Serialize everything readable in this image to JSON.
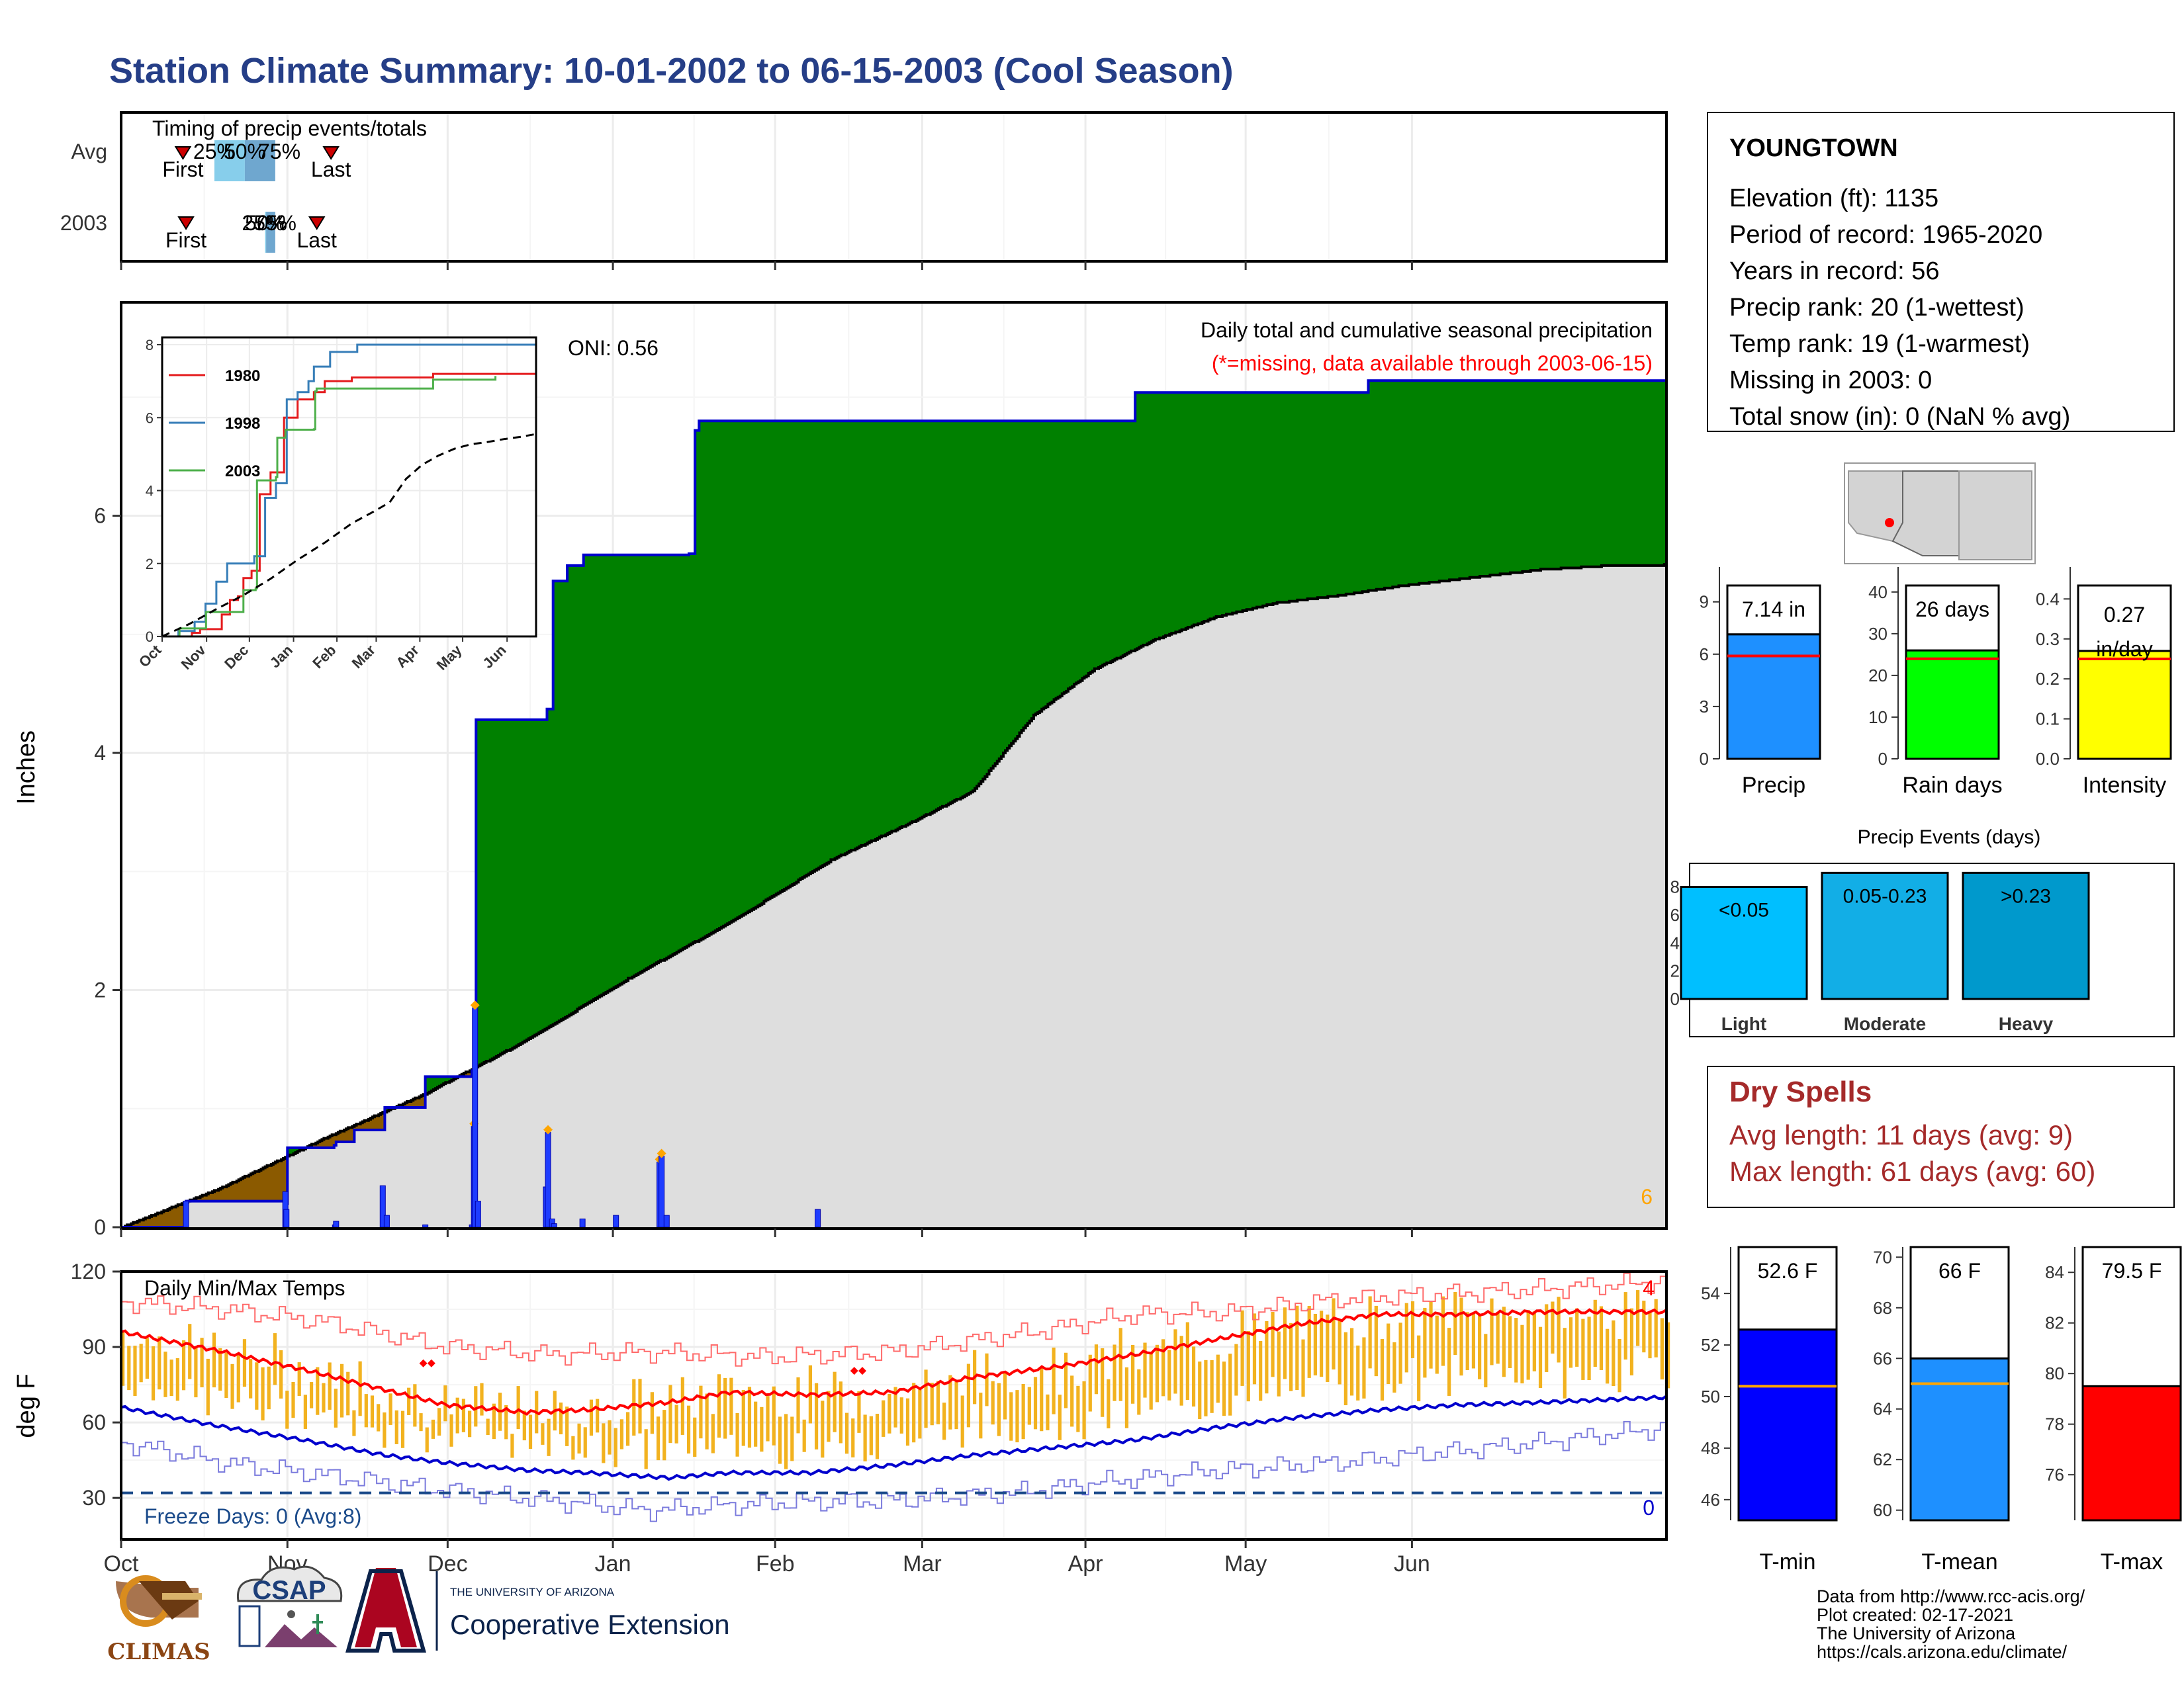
{
  "title": "Station Climate Summary: 10-01-2002 to 06-15-2003 (Cool Season)",
  "colors": {
    "title": "#253e87",
    "dry_spells": "#a52a2a",
    "missing_note": "#ff0000",
    "surplus": "#008000",
    "deficit": "#8b5a00",
    "normal_fill": "#dedede",
    "current_line": "#0000cd",
    "temp_bar": "#f2b21f",
    "tmax_line": "#ff0000",
    "tmin_line": "#0000cd",
    "freeze_line": "#1a4a8a"
  },
  "month_labels": [
    "Oct",
    "Nov",
    "Dec",
    "Jan",
    "Feb",
    "Mar",
    "Apr",
    "May",
    "Jun"
  ],
  "timing": {
    "title": "Timing of precip events/totals",
    "rows": [
      {
        "label": "Avg",
        "first_label": "First",
        "last_label": "Last",
        "first_day": 61,
        "last_day": 207,
        "p25_label": "25%",
        "p50_label": "50%",
        "p75_label": "75%",
        "p25_day": 92,
        "p50_day": 122,
        "p75_day": 152
      },
      {
        "label": "2003",
        "first_label": "First",
        "last_label": "Last",
        "first_day": 64,
        "last_day": 193,
        "p25_label": "25%",
        "p50_label": "50%",
        "p75_label": "75%",
        "p25_day": 142,
        "p50_day": 143,
        "p75_day": 152
      }
    ]
  },
  "station": {
    "name": "YOUNGTOWN",
    "lines": [
      "Elevation (ft): 1135",
      "Period of record: 1965-2020",
      "Years in record: 56",
      "Precip rank: 20 (1-wettest)",
      "Temp rank: 19 (1-warmest)",
      "Missing in 2003: 0",
      "Total snow (in): 0 (NaN % avg)"
    ]
  },
  "precip_panel": {
    "ylabel": "Inches",
    "oni": "ONI: 0.56",
    "subtitle": "Daily total and cumulative seasonal precipitation",
    "missing_note": "(*=missing, data available through 2003-06-15)",
    "corner_count": "6",
    "ylim": [
      0,
      7.8
    ],
    "yticks": [
      "0",
      "2",
      "4",
      "6"
    ]
  },
  "inset": {
    "yticks": [
      "0",
      "2",
      "4",
      "6",
      "8"
    ],
    "xticks": [
      "Oct",
      "Nov",
      "Dec",
      "Jan",
      "Feb",
      "Mar",
      "Apr",
      "May",
      "Jun"
    ],
    "legend": [
      {
        "name": "1980",
        "color": "#e41a1c"
      },
      {
        "name": "1998",
        "color": "#377eb8"
      },
      {
        "name": "2003",
        "color": "#4daf4a"
      }
    ]
  },
  "stat_bars": [
    {
      "label": "Precip",
      "value_label": "7.14 in",
      "value": 7.14,
      "avg": 5.9,
      "ymax": 11,
      "ticks": [
        "0",
        "3",
        "6",
        "9"
      ],
      "color": "#1e90ff"
    },
    {
      "label": "Rain days",
      "value_label": "26 days",
      "value": 26,
      "avg": 24,
      "ymax": 46,
      "ticks": [
        "0",
        "10",
        "20",
        "30",
        "40"
      ],
      "color": "#00ff00"
    },
    {
      "label": "Intensity",
      "value_label": "0.27 in/day",
      "value": 0.27,
      "avg": 0.25,
      "ymax": 0.48,
      "ticks": [
        "0.0",
        "0.1",
        "0.2",
        "0.3",
        "0.4"
      ],
      "color": "#ffff00"
    }
  ],
  "precip_events": {
    "title": "Precip Events (days)",
    "yticks": [
      "0",
      "2",
      "4",
      "6",
      "8"
    ],
    "bars": [
      {
        "label": "Light",
        "range": "<0.05",
        "value": 8
      },
      {
        "label": "Moderate",
        "range": "0.05-0.23",
        "value": 9
      },
      {
        "label": "Heavy",
        "range": ">0.23",
        "value": 9
      }
    ]
  },
  "dry_spells": {
    "title": "Dry Spells",
    "avg_line": "Avg length: 11 days (avg: 9)",
    "max_line": "Max length: 61 days (avg: 60)"
  },
  "temp_panel": {
    "title": "Daily Min/Max Temps",
    "ylabel": "deg F",
    "yticks": [
      "30",
      "60",
      "90",
      "120"
    ],
    "ylim": [
      14,
      120
    ],
    "freeze_label": "Freeze Days: 0 (Avg:8)",
    "count_top": "4",
    "count_bottom": "0"
  },
  "temp_bars": [
    {
      "label": "T-min",
      "value_label": "52.6 F",
      "value": 52.6,
      "avg": 50.4,
      "ymin": 45.2,
      "ymax": 55.8,
      "ticks": [
        "46",
        "48",
        "50",
        "52",
        "54"
      ],
      "color": "#0000ff"
    },
    {
      "label": "T-mean",
      "value_label": "66 F",
      "value": 66,
      "avg": 65,
      "ymin": 59.6,
      "ymax": 70.4,
      "ticks": [
        "60",
        "62",
        "64",
        "66",
        "68",
        "70"
      ],
      "color": "#1e90ff"
    },
    {
      "label": "T-max",
      "value_label": "79.5 F",
      "value": 79.5,
      "avg": 79.6,
      "ymin": 74.2,
      "ymax": 85,
      "ticks": [
        "76",
        "78",
        "80",
        "82",
        "84"
      ],
      "color": "#ff0000"
    }
  ],
  "logos": {
    "climas": "CLIMAS",
    "csap": "CSAP",
    "ua_small": "THE UNIVERSITY OF ARIZONA",
    "ua_big": "Cooperative Extension"
  },
  "footer": [
    "Data from http://www.rcc-acis.org/",
    "Plot created: 02-17-2021",
    "The University of Arizona",
    "https://cals.arizona.edu/climate/"
  ],
  "chart_data": [
    {
      "type": "area",
      "title": "Daily total and cumulative seasonal precipitation",
      "ylabel": "Inches",
      "ylim": [
        0,
        7.8
      ],
      "cumulative_2003_steps": [
        [
          0,
          0
        ],
        [
          64,
          0.22
        ],
        [
          162,
          0.2
        ],
        [
          163,
          0.67
        ],
        [
          210,
          0.69
        ],
        [
          211,
          0.72
        ],
        [
          230,
          0.82
        ],
        [
          260,
          1.01
        ],
        [
          300,
          1.27
        ],
        [
          345,
          1.32
        ],
        [
          350,
          4.28
        ],
        [
          420,
          4.37
        ],
        [
          425,
          5.45
        ],
        [
          440,
          5.58
        ],
        [
          455,
          5.67
        ],
        [
          560,
          5.68
        ],
        [
          565,
          6.72
        ],
        [
          570,
          6.8
        ],
        [
          1000,
          7.04
        ],
        [
          1230,
          7.14
        ]
      ],
      "cumulative_normal_points": [
        [
          0,
          0
        ],
        [
          100,
          0.34
        ],
        [
          200,
          0.75
        ],
        [
          300,
          1.13
        ],
        [
          400,
          1.58
        ],
        [
          500,
          2.1
        ],
        [
          600,
          2.57
        ],
        [
          700,
          3.1
        ],
        [
          780,
          3.42
        ],
        [
          840,
          3.68
        ],
        [
          900,
          4.32
        ],
        [
          960,
          4.71
        ],
        [
          1020,
          4.96
        ],
        [
          1080,
          5.15
        ],
        [
          1140,
          5.27
        ],
        [
          1200,
          5.33
        ],
        [
          1260,
          5.41
        ],
        [
          1320,
          5.47
        ],
        [
          1400,
          5.55
        ],
        [
          1460,
          5.58
        ],
        [
          1522,
          5.59
        ]
      ],
      "daily_events": [
        [
          64,
          0.22
        ],
        [
          162,
          0.3
        ],
        [
          163,
          0.15
        ],
        [
          211,
          0.02
        ],
        [
          212,
          0.05
        ],
        [
          258,
          0.35
        ],
        [
          262,
          0.1
        ],
        [
          300,
          0.02
        ],
        [
          346,
          0.02
        ],
        [
          348,
          0.85
        ],
        [
          349,
          1.85
        ],
        [
          352,
          0.22
        ],
        [
          419,
          0.34
        ],
        [
          421,
          0.8
        ],
        [
          425,
          0.07
        ],
        [
          427,
          0.03
        ],
        [
          455,
          0.07
        ],
        [
          488,
          0.1
        ],
        [
          531,
          0.55
        ],
        [
          533,
          0.6
        ],
        [
          538,
          0.1
        ],
        [
          687,
          0.15
        ]
      ]
    },
    {
      "type": "line",
      "title": "Daily Min/Max Temps",
      "ylabel": "deg F",
      "ylim": [
        14,
        120
      ],
      "normal_max_points": [
        [
          0,
          96
        ],
        [
          90,
          89
        ],
        [
          180,
          81
        ],
        [
          260,
          73
        ],
        [
          320,
          67
        ],
        [
          400,
          64
        ],
        [
          460,
          65
        ],
        [
          540,
          68
        ],
        [
          600,
          72
        ],
        [
          680,
          71
        ],
        [
          760,
          72
        ],
        [
          840,
          78
        ],
        [
          920,
          82
        ],
        [
          1000,
          87
        ],
        [
          1080,
          93
        ],
        [
          1160,
          99
        ],
        [
          1240,
          103
        ],
        [
          1320,
          103
        ],
        [
          1400,
          104
        ],
        [
          1524,
          104
        ]
      ],
      "normal_min_points": [
        [
          0,
          66
        ],
        [
          90,
          59
        ],
        [
          180,
          53
        ],
        [
          260,
          47
        ],
        [
          320,
          44
        ],
        [
          400,
          41
        ],
        [
          460,
          40
        ],
        [
          540,
          38
        ],
        [
          600,
          40
        ],
        [
          680,
          40
        ],
        [
          760,
          43
        ],
        [
          840,
          47
        ],
        [
          920,
          50
        ],
        [
          1000,
          53
        ],
        [
          1080,
          58
        ],
        [
          1160,
          62
        ],
        [
          1240,
          65
        ],
        [
          1320,
          67
        ],
        [
          1400,
          68
        ],
        [
          1524,
          70
        ]
      ],
      "record_max_points": [
        [
          0,
          108
        ],
        [
          100,
          105
        ],
        [
          200,
          100
        ],
        [
          320,
          90
        ],
        [
          420,
          87
        ],
        [
          520,
          88
        ],
        [
          640,
          86
        ],
        [
          760,
          88
        ],
        [
          900,
          96
        ],
        [
          1000,
          103
        ],
        [
          1100,
          104
        ],
        [
          1200,
          109
        ],
        [
          1300,
          111
        ],
        [
          1400,
          113
        ],
        [
          1524,
          116
        ]
      ],
      "record_min_points": [
        [
          0,
          52
        ],
        [
          100,
          44
        ],
        [
          220,
          38
        ],
        [
          320,
          33
        ],
        [
          420,
          29
        ],
        [
          520,
          25
        ],
        [
          640,
          28
        ],
        [
          760,
          29
        ],
        [
          880,
          32
        ],
        [
          960,
          36
        ],
        [
          1080,
          41
        ],
        [
          1200,
          44
        ],
        [
          1300,
          48
        ],
        [
          1400,
          52
        ],
        [
          1524,
          58
        ]
      ],
      "freeze_threshold": 32
    },
    {
      "type": "line",
      "title": "",
      "series": [
        {
          "name": "1980",
          "points": [
            [
              0,
              0
            ],
            [
              110,
              0.1
            ],
            [
              140,
              0.2
            ],
            [
              220,
              0.6
            ],
            [
              250,
              0.8
            ],
            [
              250,
              1.0
            ],
            [
              280,
              1.1
            ],
            [
              300,
              1.6
            ],
            [
              330,
              1.8
            ],
            [
              360,
              3.9
            ],
            [
              400,
              4.5
            ],
            [
              450,
              6.0
            ],
            [
              500,
              6.5
            ],
            [
              560,
              6.7
            ],
            [
              600,
              7.0
            ],
            [
              700,
              7.1
            ],
            [
              1000,
              7.2
            ],
            [
              1380,
              7.3
            ]
          ]
        },
        {
          "name": "1998",
          "points": [
            [
              0,
              0
            ],
            [
              60,
              0.15
            ],
            [
              120,
              0.4
            ],
            [
              160,
              0.9
            ],
            [
              200,
              1.5
            ],
            [
              240,
              2.0
            ],
            [
              280,
              2.0
            ],
            [
              340,
              2.2
            ],
            [
              380,
              3.8
            ],
            [
              420,
              4.2
            ],
            [
              460,
              6.5
            ],
            [
              500,
              6.7
            ],
            [
              540,
              7.0
            ],
            [
              560,
              7.4
            ],
            [
              620,
              7.8
            ],
            [
              720,
              8.0
            ],
            [
              1380,
              8.0
            ]
          ]
        },
        {
          "name": "2003",
          "points": [
            [
              0,
              0
            ],
            [
              64,
              0.22
            ],
            [
              162,
              0.67
            ],
            [
              300,
              1.27
            ],
            [
              345,
              1.32
            ],
            [
              350,
              4.28
            ],
            [
              420,
              4.37
            ],
            [
              425,
              5.45
            ],
            [
              455,
              5.67
            ],
            [
              560,
              5.68
            ],
            [
              565,
              6.72
            ],
            [
              570,
              6.8
            ],
            [
              1000,
              7.04
            ],
            [
              1230,
              7.14
            ]
          ]
        },
        {
          "name": "",
          "points": [
            [
              0,
              0
            ],
            [
              100,
              0.34
            ],
            [
              200,
              0.75
            ],
            [
              300,
              1.13
            ],
            [
              400,
              1.58
            ],
            [
              500,
              2.1
            ],
            [
              600,
              2.57
            ],
            [
              700,
              3.1
            ],
            [
              780,
              3.42
            ],
            [
              840,
              3.68
            ],
            [
              900,
              4.32
            ],
            [
              960,
              4.71
            ],
            [
              1020,
              4.96
            ],
            [
              1080,
              5.15
            ],
            [
              1140,
              5.27
            ],
            [
              1200,
              5.33
            ],
            [
              1260,
              5.41
            ],
            [
              1320,
              5.47
            ],
            [
              1400,
              5.55
            ],
            [
              1460,
              5.58
            ],
            [
              1522,
              5.59
            ]
          ]
        }
      ],
      "ylim": [
        0,
        8.2
      ]
    },
    {
      "type": "bar",
      "title": "Precip Events (days)",
      "categories": [
        "Light",
        "Moderate",
        "Heavy"
      ],
      "values": [
        8,
        9,
        9
      ]
    }
  ]
}
